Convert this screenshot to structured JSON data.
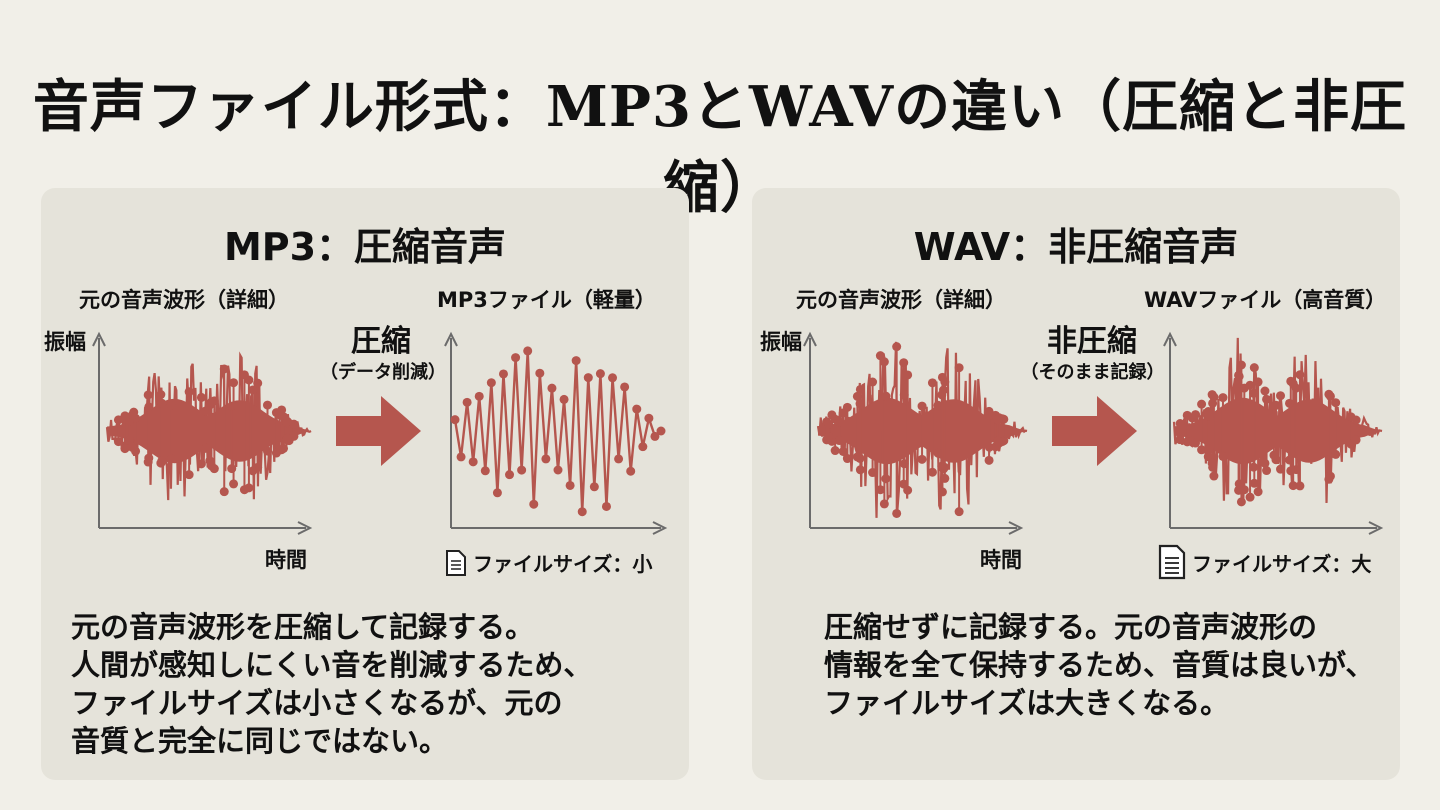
{
  "title": "音声ファイル形式：MP3とWAVの違い（圧縮と非圧縮）",
  "colors": {
    "background": "#f1efe8",
    "panel": "#e5e3da",
    "wave": "#b5564e",
    "axis": "#6b6b6b"
  },
  "mp3": {
    "heading": "MP3：圧縮音声",
    "original_label": "元の音声波形（詳細）",
    "file_label": "MP3ファイル（軽量）",
    "y_axis": "振幅",
    "x_axis": "時間",
    "arrow_main": "圧縮",
    "arrow_sub": "（データ削減）",
    "file_size": "ファイルサイズ：小",
    "file_icon": "document-icon",
    "description": [
      "元の音声波形を圧縮して記録する。",
      "人間が感知しにくい音を削減するため、",
      "ファイルサイズは小さくなるが、元の",
      "音質と完全に同じではない。"
    ]
  },
  "wav": {
    "heading": "WAV：非圧縮音声",
    "original_label": "元の音声波形（詳細）",
    "file_label": "WAVファイル（高音質）",
    "y_axis": "振幅",
    "x_axis": "時間",
    "arrow_main": "非圧縮",
    "arrow_sub": "（そのまま記録）",
    "file_size": "ファイルサイズ：大",
    "file_icon": "document-icon",
    "description": [
      "圧縮せずに記録する。元の音声波形の",
      "情報を全て保持するため、音質は良いが、",
      "ファイルサイズは大きくなる。"
    ]
  }
}
